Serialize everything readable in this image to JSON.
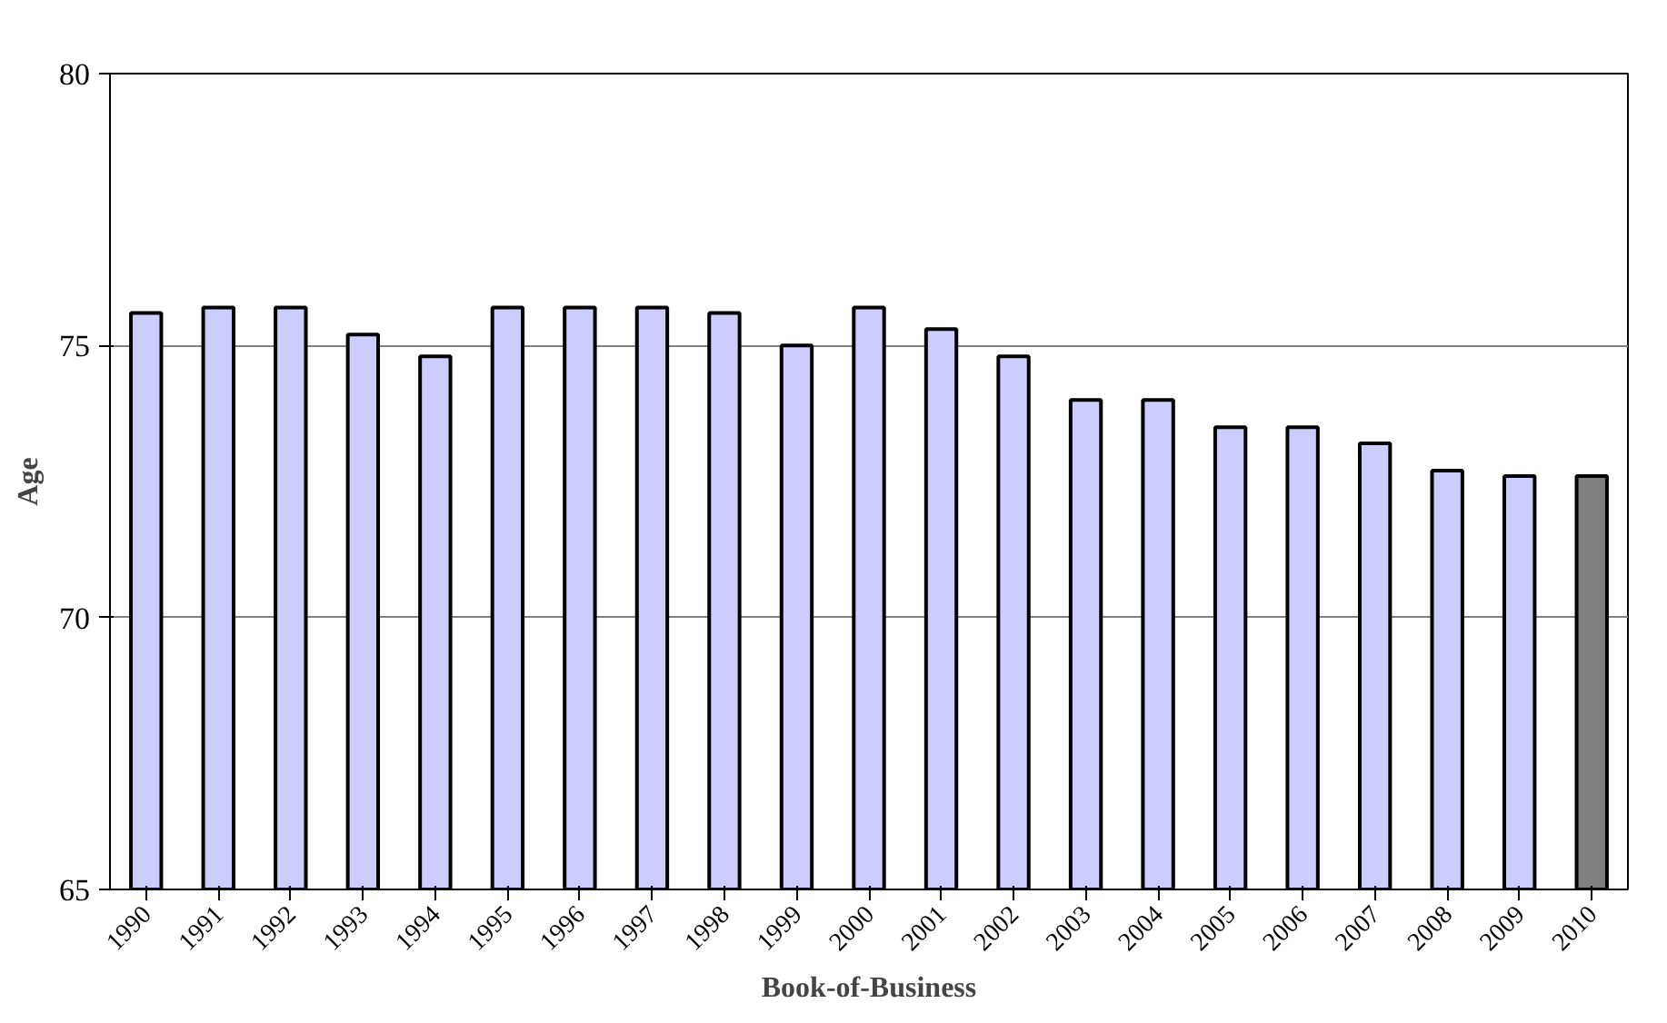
{
  "chart_data": {
    "type": "bar",
    "xlabel": "Book-of-Business",
    "ylabel": "Age",
    "categories": [
      "1990",
      "1991",
      "1992",
      "1993",
      "1994",
      "1995",
      "1996",
      "1997",
      "1998",
      "1999",
      "2000",
      "2001",
      "2002",
      "2003",
      "2004",
      "2005",
      "2006",
      "2007",
      "2008",
      "2009",
      "2010"
    ],
    "values": [
      75.6,
      75.7,
      75.7,
      75.2,
      74.8,
      75.7,
      75.7,
      75.7,
      75.6,
      75.0,
      75.7,
      75.3,
      74.8,
      74.0,
      74.0,
      73.5,
      73.5,
      73.2,
      72.7,
      72.6,
      72.6
    ],
    "colors": [
      "#ccccff",
      "#ccccff",
      "#ccccff",
      "#ccccff",
      "#ccccff",
      "#ccccff",
      "#ccccff",
      "#ccccff",
      "#ccccff",
      "#ccccff",
      "#ccccff",
      "#ccccff",
      "#ccccff",
      "#ccccff",
      "#ccccff",
      "#ccccff",
      "#ccccff",
      "#ccccff",
      "#ccccff",
      "#ccccff",
      "#808080"
    ],
    "ylim": [
      65,
      80
    ],
    "yticks": [
      65,
      70,
      75,
      80
    ],
    "grid": "y"
  }
}
